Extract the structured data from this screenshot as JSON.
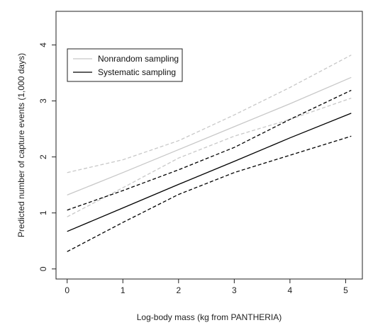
{
  "chart_data": {
    "type": "line",
    "title": "",
    "xlabel": "Log-body mass (kg from PANTHERIA)",
    "ylabel": "Predicted number of capture events (1,000 days)",
    "xlim": [
      -0.2,
      5.3
    ],
    "ylim": [
      -0.18,
      4.6
    ],
    "x_ticks": [
      0,
      1,
      2,
      3,
      4,
      5
    ],
    "y_ticks": [
      0,
      1,
      2,
      3,
      4
    ],
    "grid": false,
    "legend_position": "top-left",
    "series": [
      {
        "name": "Nonrandom sampling",
        "color": "#c8c8c8",
        "dash": "solid",
        "x": [
          0,
          1,
          2,
          3,
          4,
          5.1
        ],
        "y": [
          1.32,
          1.72,
          2.13,
          2.54,
          2.95,
          3.42
        ]
      },
      {
        "name": "",
        "color": "#c8c8c8",
        "dash": "dashed",
        "x": [
          0,
          1,
          2,
          3,
          4,
          5.1
        ],
        "y": [
          1.72,
          1.95,
          2.29,
          2.75,
          3.24,
          3.82
        ]
      },
      {
        "name": "",
        "color": "#c8c8c8",
        "dash": "dashed",
        "x": [
          0,
          1,
          2,
          3,
          4,
          5.1
        ],
        "y": [
          0.93,
          1.45,
          1.98,
          2.37,
          2.67,
          3.05
        ]
      },
      {
        "name": "Systematic sampling",
        "color": "#000000",
        "dash": "solid",
        "x": [
          0,
          1,
          2,
          3,
          4,
          5.1
        ],
        "y": [
          0.67,
          1.09,
          1.51,
          1.92,
          2.34,
          2.78
        ]
      },
      {
        "name": "",
        "color": "#000000",
        "dash": "dashed",
        "x": [
          0,
          1,
          2,
          3,
          4,
          5.1
        ],
        "y": [
          1.05,
          1.4,
          1.77,
          2.17,
          2.67,
          3.19
        ]
      },
      {
        "name": "",
        "color": "#000000",
        "dash": "dashed",
        "x": [
          0,
          1,
          2,
          3,
          4,
          5.1
        ],
        "y": [
          0.31,
          0.83,
          1.33,
          1.72,
          2.03,
          2.37
        ]
      }
    ],
    "legend": [
      {
        "label": "Nonrandom sampling",
        "color": "#c8c8c8"
      },
      {
        "label": "Systematic sampling",
        "color": "#000000"
      }
    ]
  }
}
